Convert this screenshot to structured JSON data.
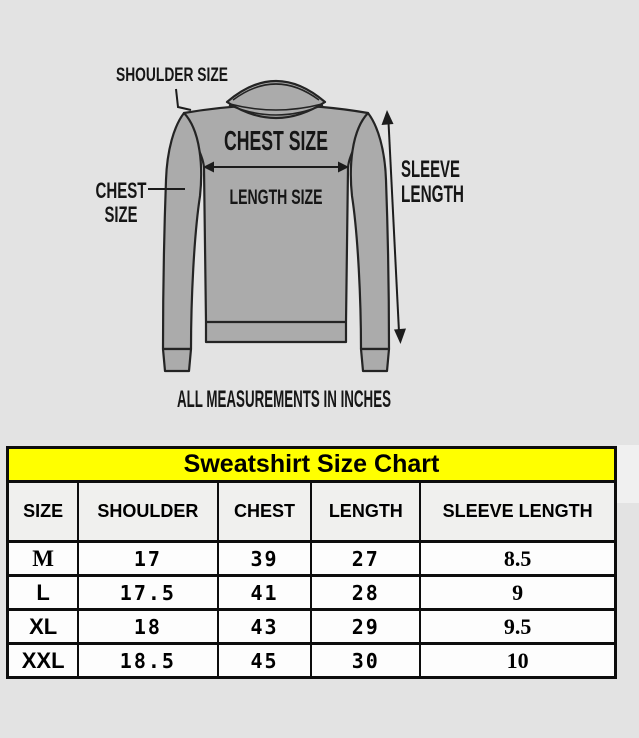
{
  "page": {
    "background": "#e3e3e3"
  },
  "diagram": {
    "labels": {
      "shoulder_size": "SHOULDER SIZE",
      "chest_side_line1": "CHEST",
      "chest_side_line2": "SIZE",
      "chest_main": "CHEST SIZE",
      "length_size": "LENGTH SIZE",
      "sleeve_line1": "SLEEVE",
      "sleeve_line2": "LENGTH",
      "note": "ALL MEASUREMENTS IN INCHES"
    },
    "colors": {
      "garment_fill": "#ababab",
      "outline": "#242424"
    }
  },
  "chart_data": {
    "type": "table",
    "title": "Sweatshirt Size Chart",
    "title_bg": "#ffff00",
    "units": "inches",
    "columns": [
      "SIZE",
      "SHOULDER",
      "CHEST",
      "LENGTH",
      "SLEEVE LENGTH"
    ],
    "rows": [
      [
        "M",
        "17",
        "39",
        "27",
        "8.5"
      ],
      [
        "L",
        "17.5",
        "41",
        "28",
        "9"
      ],
      [
        "XL",
        "18",
        "43",
        "29",
        "9.5"
      ],
      [
        "XXL",
        "18.5",
        "45",
        "30",
        "10"
      ]
    ]
  }
}
